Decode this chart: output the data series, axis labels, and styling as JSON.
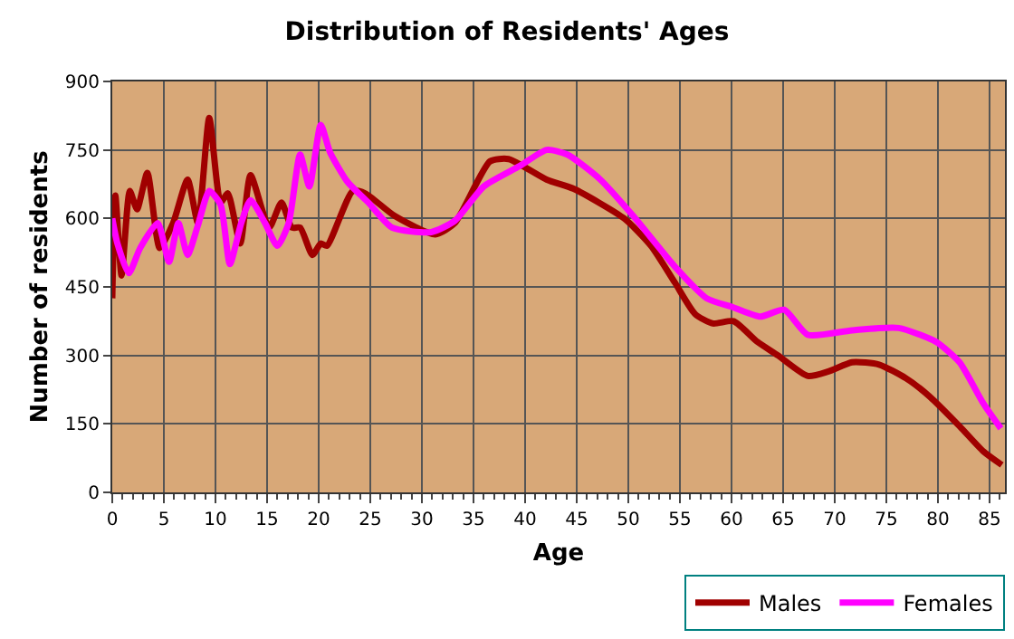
{
  "chart_data": {
    "type": "line",
    "title": "Distribution of Residents' Ages",
    "xlabel": "Age",
    "ylabel": "Number of residents",
    "xlim": [
      0,
      86.5
    ],
    "xticks": [
      0,
      5,
      10,
      15,
      20,
      25,
      30,
      35,
      40,
      45,
      50,
      55,
      60,
      65,
      70,
      75,
      80,
      85
    ],
    "ylim": [
      0,
      900
    ],
    "yticks": [
      0,
      150,
      300,
      450,
      600,
      750,
      900
    ],
    "grid": true,
    "legend": "bottom",
    "marker": "none",
    "line_style": "solid",
    "series": [
      {
        "name": "Males",
        "color": "#a00000",
        "x": [
          0,
          0.3,
          0.9,
          1.7,
          2.4,
          3.4,
          4.6,
          5.9,
          7.3,
          8.3,
          9.4,
          10.5,
          11.2,
          12.4,
          13.4,
          15.2,
          16.4,
          17.4,
          18.2,
          19.4,
          20.2,
          20.8,
          23.3,
          24.5,
          27.4,
          31.3,
          33.2,
          36.6,
          38.4,
          42.1,
          44.7,
          49.6,
          52.2,
          54.5,
          56.5,
          58.2,
          60.2,
          62.5,
          64.5,
          67.4,
          69.4,
          71.7,
          74.3,
          76.9,
          79.2,
          82.1,
          84.4,
          86.2
        ],
        "values": [
          425,
          650,
          475,
          660,
          620,
          700,
          535,
          590,
          685,
          590,
          820,
          635,
          655,
          545,
          695,
          580,
          635,
          580,
          580,
          520,
          545,
          540,
          660,
          655,
          605,
          565,
          590,
          725,
          730,
          685,
          665,
          600,
          540,
          460,
          390,
          370,
          375,
          330,
          300,
          255,
          265,
          285,
          280,
          250,
          210,
          145,
          90,
          60
        ]
      },
      {
        "name": "Females",
        "color": "#ff00ff",
        "x": [
          0,
          0.5,
          1.6,
          2.7,
          4.4,
          5.5,
          6.4,
          7.3,
          8.3,
          9.4,
          10.5,
          11.4,
          12.5,
          13.4,
          14.8,
          16.0,
          17.1,
          18.2,
          19.1,
          20.2,
          21.1,
          22.8,
          24.8,
          27.1,
          30.9,
          33.2,
          36.0,
          39.5,
          42.1,
          44.1,
          47.3,
          50.5,
          54.5,
          57.6,
          60.2,
          62.8,
          65.1,
          67.4,
          71.7,
          76.2,
          79.8,
          82.1,
          84.4,
          86.1
        ],
        "values": [
          600,
          545,
          480,
          535,
          590,
          505,
          590,
          520,
          585,
          660,
          630,
          500,
          590,
          640,
          590,
          540,
          590,
          740,
          670,
          805,
          745,
          680,
          635,
          580,
          570,
          595,
          670,
          715,
          750,
          740,
          685,
          605,
          495,
          425,
          405,
          385,
          400,
          345,
          355,
          360,
          330,
          285,
          195,
          140
        ]
      }
    ]
  }
}
